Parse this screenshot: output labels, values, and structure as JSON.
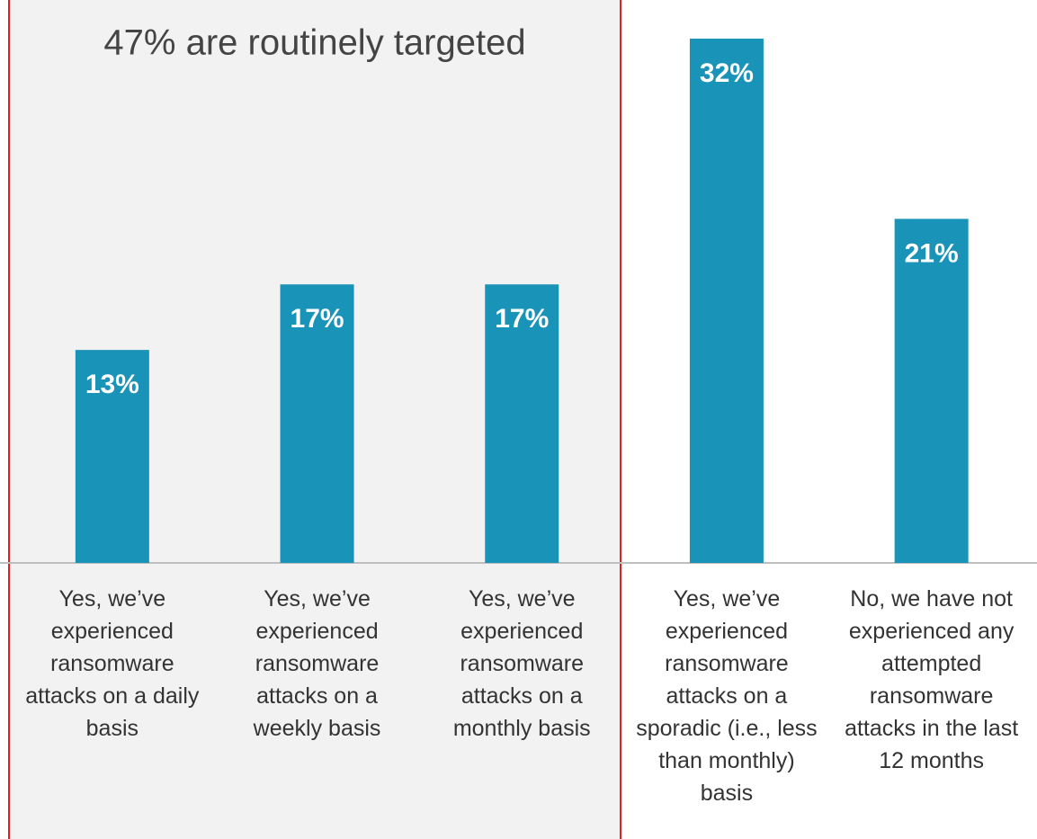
{
  "chart_data": {
    "type": "bar",
    "annotation": "47% are routinely targeted",
    "categories": [
      "Yes, we’ve experienced ransomware attacks on a daily basis",
      "Yes, we’ve experienced ransomware attacks on a weekly basis",
      "Yes, we’ve experienced ransomware attacks on a monthly basis",
      "Yes, we’ve experienced ransomware attacks on a sporadic (i.e., less than monthly) basis",
      "No, we have not experienced any attempted ransomware attacks in the last 12 months"
    ],
    "values": [
      13,
      17,
      17,
      32,
      21
    ],
    "value_labels": [
      "13%",
      "17%",
      "17%",
      "32%",
      "21%"
    ],
    "color": "#1a93b8"
  }
}
